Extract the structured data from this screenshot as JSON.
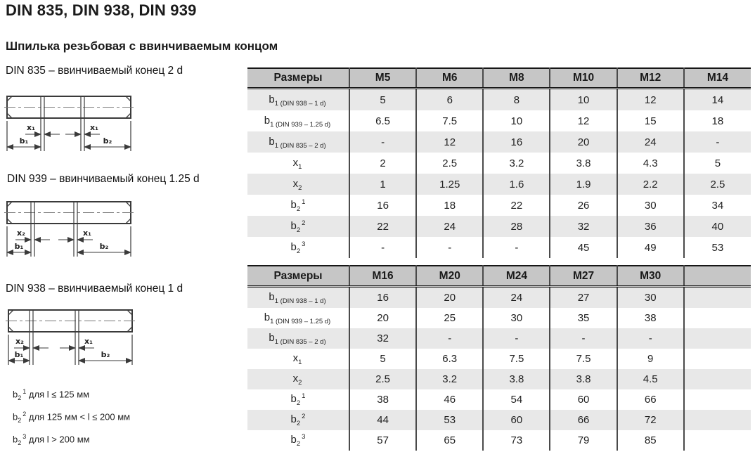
{
  "title": "DIN 835, DIN 938, DIN 939",
  "subtitle": "Шпилька резьбовая с ввинчиваемым концом",
  "drawings": [
    {
      "label": "DIN 835 – ввинчиваемый конец 2 d",
      "dim_left": "x₁",
      "dim_right": "x₁",
      "dim_b1": "b₁",
      "dim_b2": "b₂"
    },
    {
      "label": "DIN 939 – ввинчиваемый конец 1.25 d",
      "dim_left": "x₂",
      "dim_right": "x₁",
      "dim_b1": "b₁",
      "dim_b2": "b₂"
    },
    {
      "label": "DIN 938 – ввинчиваемый конец 1 d",
      "dim_left": "x₂",
      "dim_right": "x₁",
      "dim_b1": "b₁",
      "dim_b2": "b₂"
    }
  ],
  "footnotes": [
    {
      "main": "b",
      "sub": "2",
      "sup": "1",
      "text": " для l ≤ 125 мм"
    },
    {
      "main": "b",
      "sub": "2",
      "sup": "2",
      "text": " для 125 мм < l ≤ 200 мм"
    },
    {
      "main": "b",
      "sub": "2",
      "sup": "3",
      "text": " для l > 200 мм"
    }
  ],
  "tables": [
    {
      "header": [
        "Размеры",
        "M5",
        "M6",
        "M8",
        "M10",
        "M12",
        "M14"
      ],
      "rows": [
        {
          "main": "b",
          "sub": "1 (DIN 938 – 1 d)",
          "sup": "",
          "values": [
            "5",
            "6",
            "8",
            "10",
            "12",
            "14"
          ]
        },
        {
          "main": "b",
          "sub": "1 (DIN 939 – 1.25 d)",
          "sup": "",
          "values": [
            "6.5",
            "7.5",
            "10",
            "12",
            "15",
            "18"
          ]
        },
        {
          "main": "b",
          "sub": "1 (DIN 835 – 2 d)",
          "sup": "",
          "values": [
            "-",
            "12",
            "16",
            "20",
            "24",
            "-"
          ]
        },
        {
          "main": "x",
          "sub": "1",
          "sup": "",
          "values": [
            "2",
            "2.5",
            "3.2",
            "3.8",
            "4.3",
            "5"
          ]
        },
        {
          "main": "x",
          "sub": "2",
          "sup": "",
          "values": [
            "1",
            "1.25",
            "1.6",
            "1.9",
            "2.2",
            "2.5"
          ]
        },
        {
          "main": "b",
          "sub": "2",
          "sup": "1",
          "values": [
            "16",
            "18",
            "22",
            "26",
            "30",
            "34"
          ]
        },
        {
          "main": "b",
          "sub": "2",
          "sup": "2",
          "values": [
            "22",
            "24",
            "28",
            "32",
            "36",
            "40"
          ]
        },
        {
          "main": "b",
          "sub": "2",
          "sup": "3",
          "values": [
            "-",
            "-",
            "-",
            "45",
            "49",
            "53"
          ]
        }
      ]
    },
    {
      "header": [
        "Размеры",
        "M16",
        "M20",
        "M24",
        "M27",
        "M30",
        ""
      ],
      "rows": [
        {
          "main": "b",
          "sub": "1 (DIN 938 – 1 d)",
          "sup": "",
          "values": [
            "16",
            "20",
            "24",
            "27",
            "30",
            ""
          ]
        },
        {
          "main": "b",
          "sub": "1 (DIN 939 – 1.25 d)",
          "sup": "",
          "values": [
            "20",
            "25",
            "30",
            "35",
            "38",
            ""
          ]
        },
        {
          "main": "b",
          "sub": "1 (DIN 835 – 2 d)",
          "sup": "",
          "values": [
            "32",
            "-",
            "-",
            "-",
            "-",
            ""
          ]
        },
        {
          "main": "x",
          "sub": "1",
          "sup": "",
          "values": [
            "5",
            "6.3",
            "7.5",
            "7.5",
            "9",
            ""
          ]
        },
        {
          "main": "x",
          "sub": "2",
          "sup": "",
          "values": [
            "2.5",
            "3.2",
            "3.8",
            "3.8",
            "4.5",
            ""
          ]
        },
        {
          "main": "b",
          "sub": "2",
          "sup": "1",
          "values": [
            "38",
            "46",
            "54",
            "60",
            "66",
            ""
          ]
        },
        {
          "main": "b",
          "sub": "2",
          "sup": "2",
          "values": [
            "44",
            "53",
            "60",
            "66",
            "72",
            ""
          ]
        },
        {
          "main": "b",
          "sub": "2",
          "sup": "3",
          "values": [
            "57",
            "65",
            "73",
            "79",
            "85",
            ""
          ]
        }
      ]
    }
  ],
  "colors": {
    "header_bg": "#c6c6c6",
    "stripe_bg": "#e8e8e8",
    "table_border": "#4a4a4a",
    "text": "#1a1a1a"
  }
}
